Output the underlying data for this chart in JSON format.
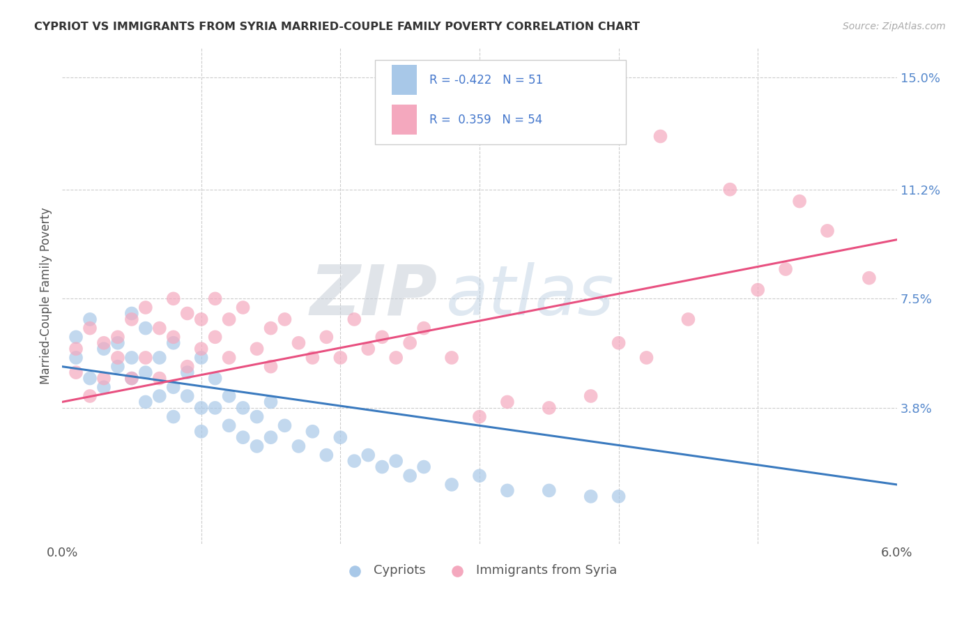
{
  "title": "CYPRIOT VS IMMIGRANTS FROM SYRIA MARRIED-COUPLE FAMILY POVERTY CORRELATION CHART",
  "source": "Source: ZipAtlas.com",
  "ylabel": "Married-Couple Family Poverty",
  "ytick_labels": [
    "",
    "3.8%",
    "7.5%",
    "11.2%",
    "15.0%"
  ],
  "ytick_vals": [
    0.0,
    0.038,
    0.075,
    0.112,
    0.15
  ],
  "xmin": 0.0,
  "xmax": 0.06,
  "ymin": -0.008,
  "ymax": 0.16,
  "cypriot_R": -0.422,
  "cypriot_N": 51,
  "syria_R": 0.359,
  "syria_N": 54,
  "cypriot_color": "#a8c8e8",
  "syria_color": "#f4a8be",
  "cypriot_line_color": "#3a7abf",
  "syria_line_color": "#e85080",
  "watermark_zip": "ZIP",
  "watermark_atlas": "atlas",
  "background_color": "#ffffff",
  "cypriot_line_x0": 0.0,
  "cypriot_line_y0": 0.052,
  "cypriot_line_x1": 0.06,
  "cypriot_line_y1": 0.012,
  "syria_line_x0": 0.0,
  "syria_line_y0": 0.04,
  "syria_line_x1": 0.06,
  "syria_line_y1": 0.095
}
